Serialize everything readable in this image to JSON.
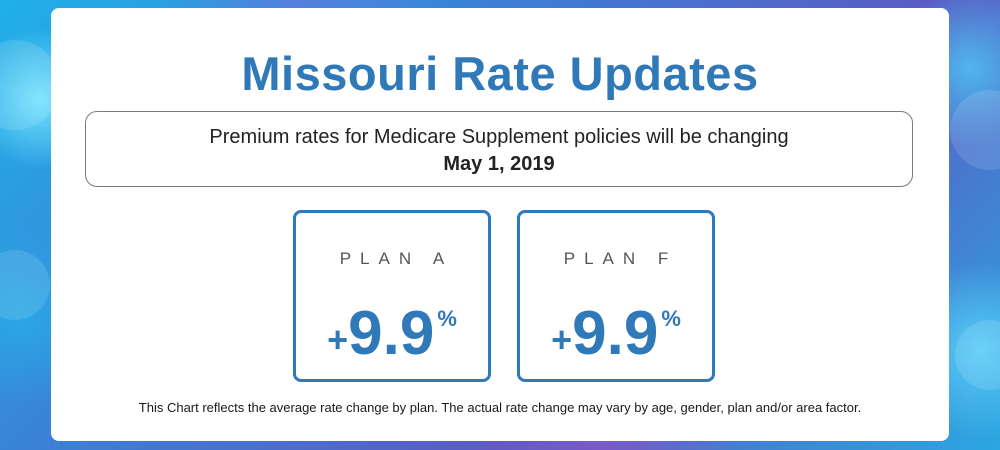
{
  "title": "Missouri Rate Updates",
  "notice": {
    "line1": "Premium rates for Medicare Supplement policies will be changing",
    "date": "May 1, 2019"
  },
  "plans": [
    {
      "name": "PLAN A",
      "sign": "+",
      "value": "9.9",
      "unit": "%"
    },
    {
      "name": "PLAN F",
      "sign": "+",
      "value": "9.9",
      "unit": "%"
    }
  ],
  "footnote": "This Chart reflects the average rate change by plan. The actual rate change may vary by age, gender, plan and/or area factor.",
  "colors": {
    "accent": "#2f79b8",
    "card": "#ffffff",
    "text": "#222222"
  }
}
